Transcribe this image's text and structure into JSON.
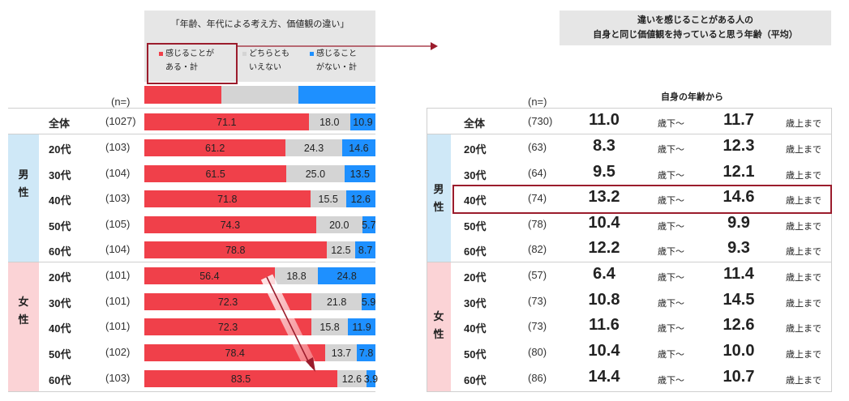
{
  "left": {
    "title": "「年齢、年代による考え方、価値観の違い」",
    "legend": [
      {
        "line1": "感じることが",
        "line2": "ある・計",
        "color": "#f0404a"
      },
      {
        "line1": "どちらとも",
        "line2": "いえない",
        "color": "#d4d4d4"
      },
      {
        "line1": "感じること",
        "line2": "がない・計",
        "color": "#1e90ff"
      }
    ],
    "n_header": "(n=)"
  },
  "right": {
    "title_line1": "違いを感じることがある人の",
    "title_line2": "自身と同じ価値観を持っていると思う年齢（平均）",
    "n_header": "(n=)",
    "col_header": "自身の年齢から",
    "unit_from": "歳下～",
    "unit_to": "歳上まで"
  },
  "groups": {
    "male": "男\n性",
    "female": "女\n性"
  },
  "colors": {
    "agree": "#f0404a",
    "neutral": "#d4d4d4",
    "disagree": "#1e90ff",
    "male_band": "#cfe8f7",
    "female_band": "#fbd3d6",
    "highlight": "#9b1c2c"
  },
  "chart_data": [
    {
      "type": "bar",
      "stacked": true,
      "orientation": "horizontal",
      "title": "「年齢、年代による考え方、価値観の違い」",
      "categories": [
        "全体",
        "20代",
        "30代",
        "40代",
        "50代",
        "60代",
        "20代",
        "30代",
        "40代",
        "50代",
        "60代"
      ],
      "n": [
        "(1027)",
        "(103)",
        "(104)",
        "(103)",
        "(105)",
        "(104)",
        "(101)",
        "(101)",
        "(101)",
        "(102)",
        "(103)"
      ],
      "series": [
        {
          "name": "感じることがある・計",
          "values": [
            71.1,
            61.2,
            61.5,
            71.8,
            74.3,
            78.8,
            56.4,
            72.3,
            72.3,
            78.4,
            83.5
          ]
        },
        {
          "name": "どちらともいえない",
          "values": [
            18.0,
            24.3,
            25.0,
            15.5,
            20.0,
            12.5,
            18.8,
            21.8,
            15.8,
            13.7,
            12.6
          ]
        },
        {
          "name": "感じることがない・計",
          "values": [
            10.9,
            14.6,
            13.5,
            12.6,
            5.7,
            8.7,
            24.8,
            5.9,
            11.9,
            7.8,
            3.9
          ]
        }
      ]
    },
    {
      "type": "table",
      "title": "違いを感じることがある人の自身と同じ価値観を持っていると思う年齢（平均）",
      "categories": [
        "全体",
        "20代",
        "30代",
        "40代",
        "50代",
        "60代",
        "20代",
        "30代",
        "40代",
        "50代",
        "60代"
      ],
      "n": [
        "(730)",
        "(63)",
        "(64)",
        "(74)",
        "(78)",
        "(82)",
        "(57)",
        "(73)",
        "(73)",
        "(80)",
        "(86)"
      ],
      "series": [
        {
          "name": "歳下～",
          "values": [
            "11.0",
            "8.3",
            "9.5",
            "13.2",
            "10.4",
            "12.2",
            "6.4",
            "10.8",
            "11.6",
            "10.4",
            "14.4"
          ]
        },
        {
          "name": "歳上まで",
          "values": [
            "11.7",
            "12.3",
            "12.1",
            "14.6",
            "9.9",
            "9.3",
            "11.4",
            "14.5",
            "12.6",
            "10.0",
            "10.7"
          ]
        }
      ]
    }
  ]
}
